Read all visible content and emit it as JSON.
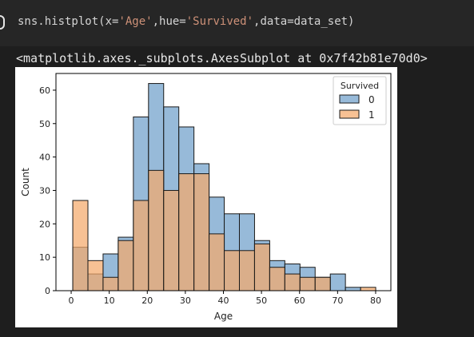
{
  "code": {
    "prefix": "sns.histplot(x=",
    "arg1": "'Age'",
    "mid": ",hue=",
    "arg2": "'Survived'",
    "suffix": ",data=data_set)"
  },
  "output_text": "<matplotlib.axes._subplots.AxesSubplot at 0x7f42b81e70d0>",
  "chart_data": {
    "type": "bar",
    "xlabel": "Age",
    "ylabel": "Count",
    "xlim": [
      -4,
      84
    ],
    "ylim": [
      0,
      65
    ],
    "x_ticks": [
      0,
      10,
      20,
      30,
      40,
      50,
      60,
      70,
      80
    ],
    "y_ticks": [
      0,
      10,
      20,
      30,
      40,
      50,
      60
    ],
    "bin_edges": [
      0.42,
      4.4,
      8.38,
      12.36,
      16.34,
      20.32,
      24.3,
      28.28,
      32.26,
      36.24,
      40.22,
      44.2,
      48.18,
      52.16,
      56.14,
      60.12,
      64.1,
      68.08,
      72.06,
      76.04,
      80.02
    ],
    "legend_title": "Survived",
    "legend_position": "top-right",
    "series": [
      {
        "name": "0",
        "color": "#6fa0cb",
        "edge": "#1a1a1a",
        "values": [
          13,
          5,
          11,
          16,
          52,
          62,
          55,
          49,
          38,
          28,
          23,
          23,
          15,
          9,
          8,
          7,
          4,
          5,
          1,
          0
        ]
      },
      {
        "name": "1",
        "color": "#f4a96b",
        "edge": "#1a1a1a",
        "values": [
          27,
          9,
          4,
          15,
          27,
          36,
          30,
          35,
          35,
          17,
          12,
          12,
          14,
          7,
          5,
          4,
          4,
          0,
          0,
          1
        ]
      }
    ]
  }
}
